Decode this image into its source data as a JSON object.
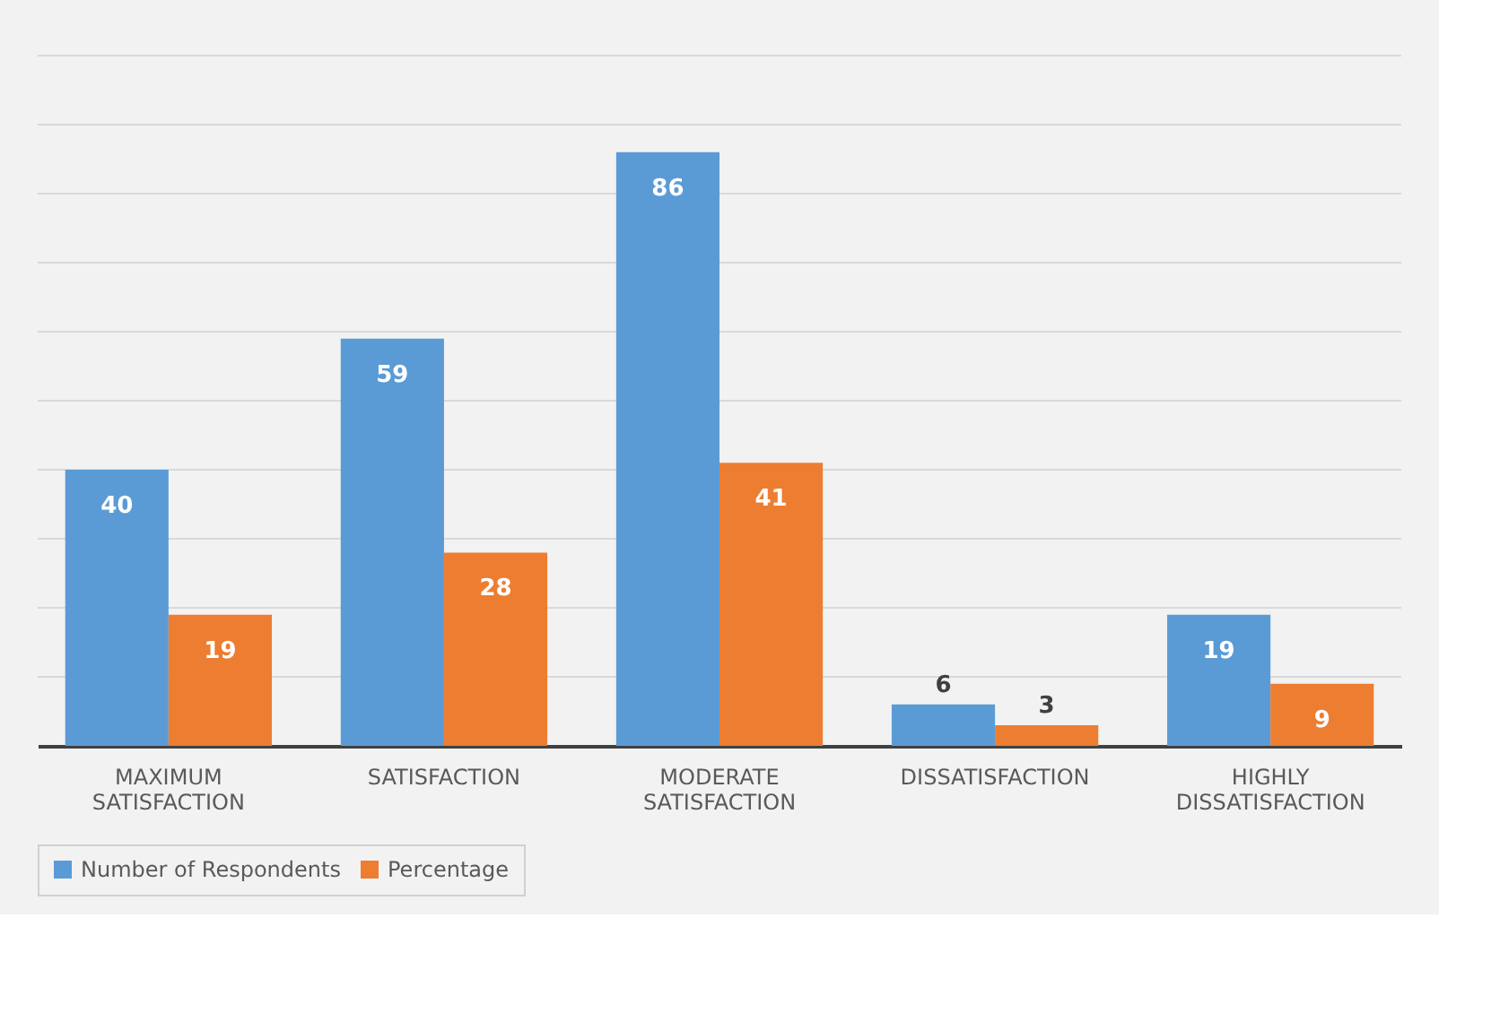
{
  "chart_data": {
    "type": "bar",
    "categories": [
      "MAXIMUM SATISFACTION",
      "SATISFACTION",
      "MODERATE SATISFACTION",
      "DISSATISFACTION",
      "HIGHLY DISSATISFACTION"
    ],
    "series": [
      {
        "name": "Number of Respondents",
        "color": "#5b9bd5",
        "values": [
          40,
          59,
          86,
          6,
          19
        ]
      },
      {
        "name": "Percentage",
        "color": "#ed7d31",
        "values": [
          19,
          28,
          41,
          3,
          9
        ]
      }
    ],
    "ylim": [
      0,
      100
    ],
    "yticks": [
      {
        "value": 0,
        "label": null
      },
      {
        "value": 10,
        "label": null
      },
      {
        "value": 20,
        "label": null
      },
      {
        "value": 30,
        "label": null
      },
      {
        "value": 40,
        "label": null
      },
      {
        "value": 50,
        "label": null
      },
      {
        "value": 60,
        "label": null
      },
      {
        "value": 70,
        "label": null
      },
      {
        "value": 80,
        "label": null
      },
      {
        "value": 90,
        "label": null
      },
      {
        "value": 100,
        "label": null
      }
    ],
    "tick_labels": "x",
    "grid": "y",
    "legend": "bottom",
    "data_labels": true
  }
}
